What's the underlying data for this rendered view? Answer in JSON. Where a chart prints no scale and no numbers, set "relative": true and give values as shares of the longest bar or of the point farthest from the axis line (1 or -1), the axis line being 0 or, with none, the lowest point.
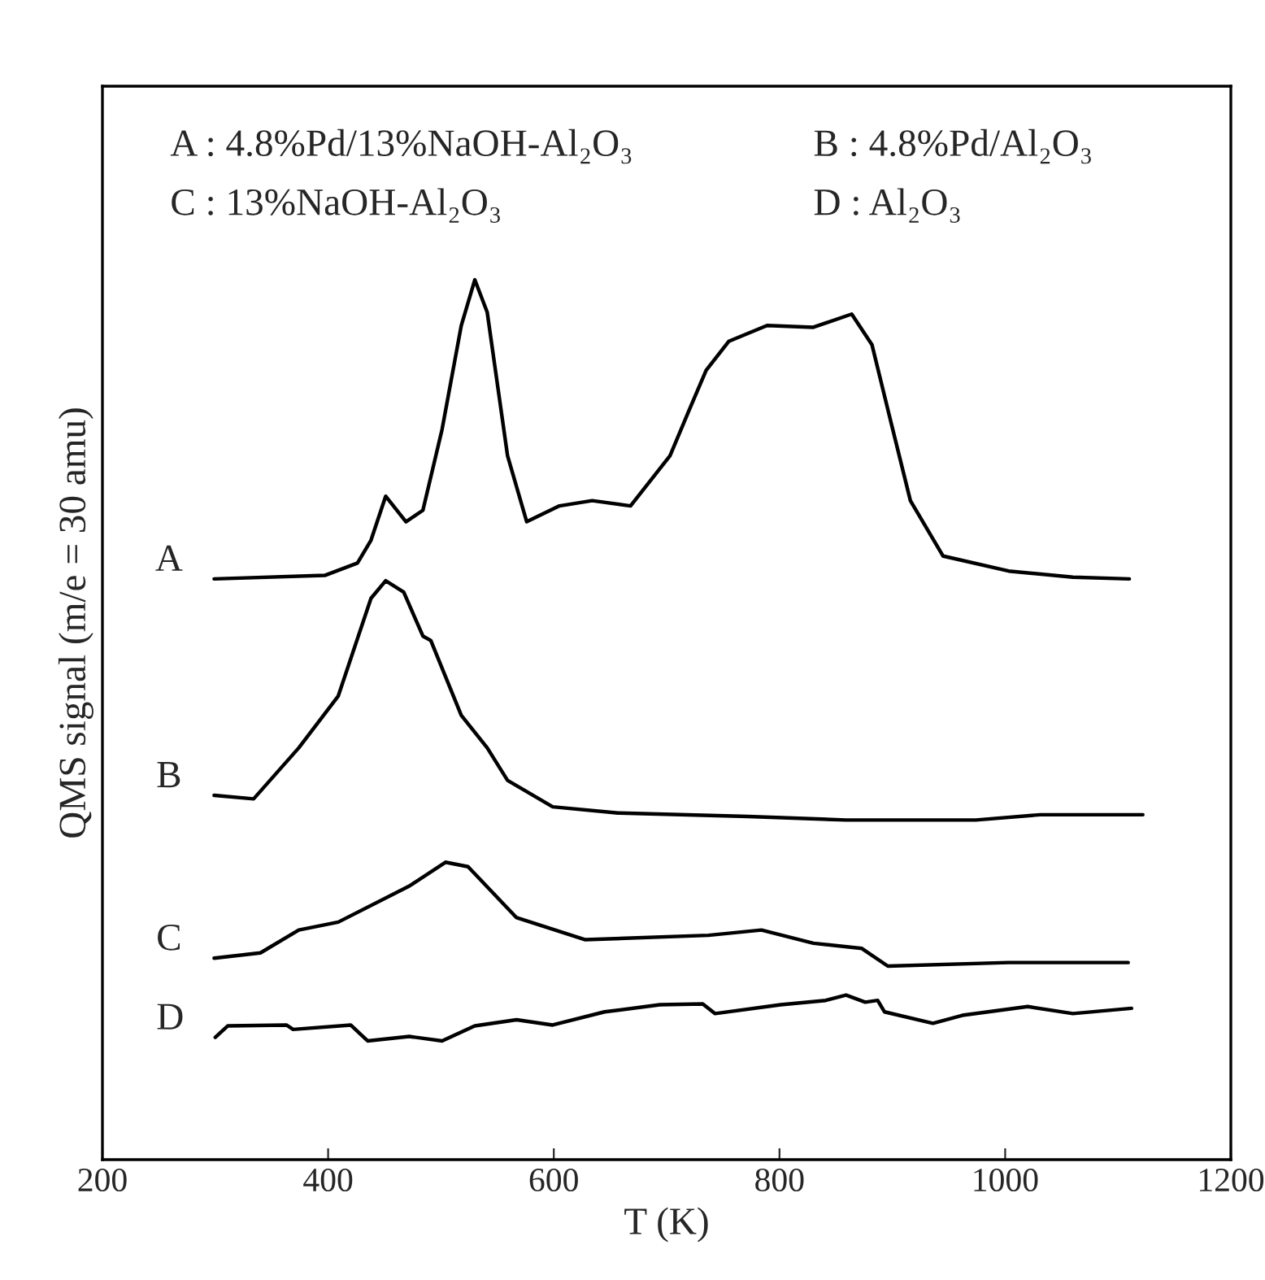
{
  "chart_data": {
    "type": "line",
    "relative": true,
    "xlabel": "T (K)",
    "ylabel": "QMS signal (m/e = 30 amu)",
    "xlim": [
      200,
      1200
    ],
    "xticks": [
      200,
      400,
      600,
      800,
      1000,
      1200
    ],
    "grid": false,
    "legend": false,
    "annotations": [
      "A : 4.8%Pd/13%NaOH-Al₂O₃",
      "B : 4.8%Pd/Al₂O₃",
      "C : 13%NaOH-Al₂O₃",
      "D : Al₂O₃"
    ],
    "series": [
      {
        "name": "A",
        "color": "#000000",
        "x": [
          299,
          397,
          426,
          438,
          451,
          469,
          484,
          501,
          518,
          530,
          541,
          559,
          576,
          605,
          634,
          668,
          703,
          720,
          735,
          755,
          789,
          830,
          864,
          882,
          899,
          916,
          945,
          1003,
          1060,
          1110
        ],
        "values": [
          0.66,
          0.664,
          0.678,
          0.704,
          0.754,
          0.725,
          0.738,
          0.83,
          0.948,
          1.0,
          0.963,
          0.8,
          0.725,
          0.743,
          0.749,
          0.743,
          0.8,
          0.852,
          0.897,
          0.93,
          0.948,
          0.946,
          0.961,
          0.926,
          0.837,
          0.749,
          0.686,
          0.669,
          0.662,
          0.66
        ]
      },
      {
        "name": "B",
        "color": "#000000",
        "x": [
          299,
          334,
          374,
          409,
          438,
          451,
          467,
          484,
          491,
          518,
          541,
          559,
          599,
          657,
          772,
          859,
          974,
          1031,
          1122
        ],
        "values": [
          0.414,
          0.41,
          0.468,
          0.527,
          0.638,
          0.658,
          0.645,
          0.595,
          0.59,
          0.505,
          0.468,
          0.431,
          0.401,
          0.394,
          0.39,
          0.386,
          0.386,
          0.392,
          0.392
        ]
      },
      {
        "name": "C",
        "color": "#000000",
        "x": [
          299,
          340,
          374,
          409,
          472,
          504,
          524,
          567,
          628,
          737,
          784,
          830,
          873,
          896,
          1003,
          1109
        ],
        "values": [
          0.229,
          0.235,
          0.261,
          0.27,
          0.311,
          0.338,
          0.333,
          0.275,
          0.25,
          0.255,
          0.261,
          0.246,
          0.24,
          0.22,
          0.224,
          0.224
        ]
      },
      {
        "name": "D",
        "color": "#000000",
        "x": [
          300,
          311,
          363,
          369,
          420,
          435,
          472,
          501,
          530,
          567,
          599,
          645,
          694,
          732,
          743,
          801,
          841,
          859,
          876,
          887,
          893,
          936,
          962,
          1020,
          1060,
          1112
        ],
        "values": [
          0.139,
          0.152,
          0.153,
          0.148,
          0.153,
          0.135,
          0.14,
          0.135,
          0.152,
          0.159,
          0.153,
          0.168,
          0.176,
          0.177,
          0.166,
          0.176,
          0.181,
          0.187,
          0.179,
          0.181,
          0.168,
          0.155,
          0.164,
          0.174,
          0.166,
          0.172
        ]
      }
    ]
  }
}
